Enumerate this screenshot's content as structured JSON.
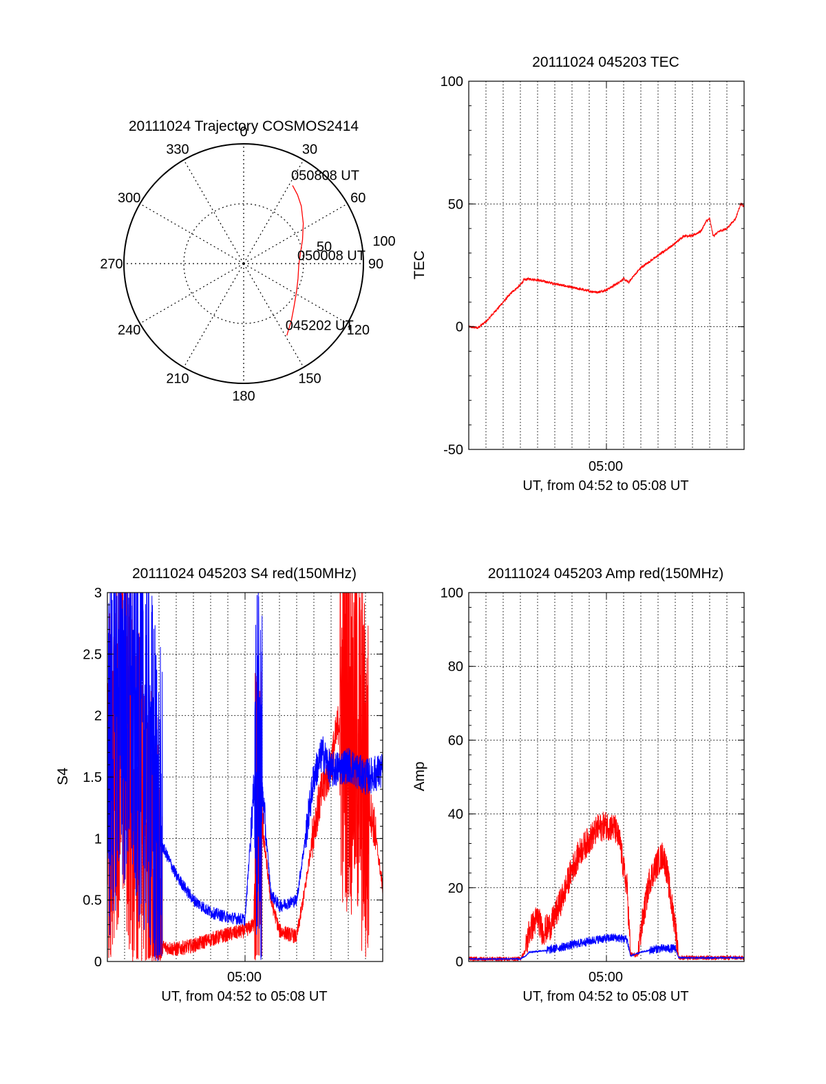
{
  "colors": {
    "red": "#ff0000",
    "blue": "#0000ff",
    "axis": "#000000",
    "grid": "#000000"
  },
  "chart_data": [
    {
      "type": "polar",
      "title": "20111024 Trajectory COSMOS2414",
      "azimuth_labels": [
        "0",
        "30",
        "60",
        "90",
        "120",
        "150",
        "180",
        "210",
        "240",
        "270",
        "300",
        "330"
      ],
      "radial_labels": [
        "50",
        "100"
      ],
      "radial_max": 100,
      "radial_rings": [
        50,
        100
      ],
      "grid": true,
      "trajectory": {
        "color": "red",
        "points": [
          {
            "az": 149.0,
            "r": 70
          },
          {
            "az": 140.0,
            "r": 62
          },
          {
            "az": 130.0,
            "r": 55
          },
          {
            "az": 118.0,
            "r": 50
          },
          {
            "az": 105.0,
            "r": 47
          },
          {
            "az": 92.0,
            "r": 46
          },
          {
            "az": 80.0,
            "r": 48
          },
          {
            "az": 68.0,
            "r": 53
          },
          {
            "az": 56.0,
            "r": 60
          },
          {
            "az": 45.0,
            "r": 68
          },
          {
            "az": 38.0,
            "r": 73
          },
          {
            "az": 32.0,
            "r": 77
          }
        ],
        "annotations": [
          {
            "text": "050808 UT",
            "az": 32.0,
            "r": 77
          },
          {
            "text": "050008 UT",
            "az": 92.0,
            "r": 46
          },
          {
            "text": "045202 UT",
            "az": 149.0,
            "r": 70
          }
        ]
      }
    },
    {
      "type": "line",
      "title": "20111024 045203 TEC",
      "ylabel": "TEC",
      "xlabel": "UT, from 04:52 to 05:08 UT",
      "xlim": [
        0,
        16
      ],
      "ylim": [
        -50,
        100
      ],
      "yticks": [
        -50,
        0,
        50,
        100
      ],
      "xtick": {
        "value": 8,
        "label": "05:00"
      },
      "grid": true,
      "series": [
        {
          "color": "red",
          "noise": 0.5,
          "points": [
            [
              0,
              0
            ],
            [
              0.5,
              -0.5
            ],
            [
              1.0,
              2
            ],
            [
              1.5,
              6
            ],
            [
              2.0,
              10
            ],
            [
              2.5,
              14
            ],
            [
              3.0,
              17
            ],
            [
              3.2,
              19
            ],
            [
              3.5,
              19.5
            ],
            [
              4.0,
              19
            ],
            [
              5.0,
              17.5
            ],
            [
              6.0,
              16
            ],
            [
              7.0,
              14.5
            ],
            [
              7.5,
              14
            ],
            [
              8.0,
              15
            ],
            [
              8.5,
              17
            ],
            [
              9.0,
              19.5
            ],
            [
              9.3,
              18
            ],
            [
              9.5,
              20
            ],
            [
              10.0,
              24
            ],
            [
              11.0,
              29
            ],
            [
              12.0,
              34
            ],
            [
              12.5,
              37
            ],
            [
              13.0,
              37
            ],
            [
              13.5,
              39
            ],
            [
              13.8,
              43
            ],
            [
              14.0,
              44
            ],
            [
              14.2,
              37
            ],
            [
              14.6,
              39
            ],
            [
              15.0,
              40
            ],
            [
              15.5,
              44
            ],
            [
              15.8,
              50
            ],
            [
              16.0,
              49
            ]
          ]
        }
      ]
    },
    {
      "type": "line",
      "title": "20111024 045203 S4 red(150MHz)",
      "ylabel": "S4",
      "xlabel": "UT, from 04:52 to 05:08 UT",
      "xlim": [
        0,
        16
      ],
      "ylim": [
        0,
        3
      ],
      "yticks": [
        0,
        0.5,
        1,
        1.5,
        2,
        2.5,
        3
      ],
      "ytick_labels": [
        "0",
        "0.5",
        "1",
        "1.5",
        "2",
        "2.5",
        "3"
      ],
      "xtick": {
        "value": 8,
        "label": "05:00"
      },
      "grid": true,
      "series": [
        {
          "color": "red",
          "noise": 0.06,
          "points": [
            [
              0,
              1.2
            ],
            [
              0.7,
              2.0
            ],
            [
              1.5,
              1.5
            ],
            [
              2.3,
              0.9
            ],
            [
              3.2,
              0.12
            ],
            [
              4.0,
              0.1
            ],
            [
              5.0,
              0.13
            ],
            [
              6.0,
              0.18
            ],
            [
              7.0,
              0.22
            ],
            [
              8.0,
              0.25
            ],
            [
              8.5,
              0.3
            ],
            [
              8.6,
              1.0
            ],
            [
              9.0,
              1.1
            ],
            [
              9.5,
              0.5
            ],
            [
              10.0,
              0.25
            ],
            [
              11.0,
              0.2
            ],
            [
              11.5,
              0.6
            ],
            [
              12.0,
              1.1
            ],
            [
              12.5,
              1.4
            ],
            [
              13.0,
              1.6
            ],
            [
              13.5,
              2.0
            ],
            [
              14.0,
              2.0
            ],
            [
              14.5,
              1.8
            ],
            [
              15.0,
              1.4
            ],
            [
              15.5,
              1.1
            ],
            [
              16.0,
              0.6
            ]
          ]
        },
        {
          "color": "blue",
          "noise": 0.05,
          "points": [
            [
              0,
              1.6
            ],
            [
              0.7,
              2.2
            ],
            [
              1.5,
              2.0
            ],
            [
              2.3,
              1.8
            ],
            [
              3.0,
              1.0
            ],
            [
              3.5,
              0.85
            ],
            [
              4.0,
              0.7
            ],
            [
              5.0,
              0.5
            ],
            [
              6.0,
              0.4
            ],
            [
              7.0,
              0.36
            ],
            [
              8.0,
              0.34
            ],
            [
              8.6,
              1.6
            ],
            [
              9.0,
              1.4
            ],
            [
              9.5,
              0.55
            ],
            [
              10.0,
              0.45
            ],
            [
              11.0,
              0.5
            ],
            [
              11.5,
              1.0
            ],
            [
              12.0,
              1.5
            ],
            [
              12.5,
              1.7
            ],
            [
              13.0,
              1.55
            ],
            [
              14.0,
              1.6
            ],
            [
              15.0,
              1.5
            ],
            [
              16.0,
              1.55
            ]
          ]
        }
      ]
    },
    {
      "type": "line",
      "title": "20111024 045203 Amp red(150MHz)",
      "ylabel": "Amp",
      "xlabel": "UT, from 04:52 to 05:08 UT",
      "xlim": [
        0,
        16
      ],
      "ylim": [
        0,
        100
      ],
      "yticks": [
        0,
        20,
        40,
        60,
        80,
        100
      ],
      "xtick": {
        "value": 8,
        "label": "05:00"
      },
      "grid": true,
      "series": [
        {
          "color": "red",
          "noise": 4,
          "points": [
            [
              0,
              0.7
            ],
            [
              3.0,
              0.7
            ],
            [
              3.3,
              3
            ],
            [
              3.5,
              8
            ],
            [
              4.0,
              12
            ],
            [
              4.3,
              8
            ],
            [
              4.8,
              10
            ],
            [
              5.5,
              18
            ],
            [
              6.0,
              25
            ],
            [
              6.5,
              30
            ],
            [
              7.0,
              33
            ],
            [
              7.5,
              36
            ],
            [
              8.0,
              37
            ],
            [
              8.5,
              36
            ],
            [
              8.8,
              32
            ],
            [
              9.0,
              25
            ],
            [
              9.2,
              20
            ],
            [
              9.4,
              2
            ],
            [
              9.8,
              1.5
            ],
            [
              10.0,
              8
            ],
            [
              10.5,
              22
            ],
            [
              11.0,
              27
            ],
            [
              11.3,
              29
            ],
            [
              11.5,
              25
            ],
            [
              11.8,
              15
            ],
            [
              12.0,
              10
            ],
            [
              12.2,
              1.0
            ],
            [
              16.0,
              1.0
            ]
          ]
        },
        {
          "color": "blue",
          "noise": 1.2,
          "points": [
            [
              0,
              0.7
            ],
            [
              3.0,
              0.7
            ],
            [
              3.3,
              1.5
            ],
            [
              3.5,
              2.5
            ],
            [
              4.5,
              3
            ],
            [
              5.5,
              4
            ],
            [
              6.5,
              5
            ],
            [
              7.5,
              6
            ],
            [
              8.5,
              6.5
            ],
            [
              9.2,
              6
            ],
            [
              9.4,
              1.5
            ],
            [
              10.0,
              2.5
            ],
            [
              11.0,
              3.5
            ],
            [
              12.0,
              3.5
            ],
            [
              12.2,
              1.0
            ],
            [
              16.0,
              1.0
            ]
          ]
        }
      ]
    }
  ]
}
